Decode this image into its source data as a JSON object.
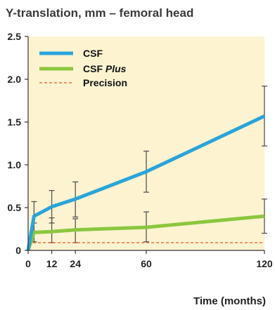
{
  "chart_data": {
    "type": "line",
    "title": "Y-translation, mm – femoral head",
    "xlabel": "Time (months)",
    "ylabel": "",
    "x_ticks": [
      0,
      12,
      24,
      60,
      120
    ],
    "y_ticks": [
      "0",
      "0.5",
      "1.0",
      "1.5",
      "2.0",
      "2.5"
    ],
    "xlim": [
      0,
      120
    ],
    "ylim": [
      0,
      2.5
    ],
    "grid": false,
    "legend_position": "top-left",
    "series": [
      {
        "name": "CSF",
        "color": "#2aa4da",
        "x": [
          0,
          3,
          12,
          24,
          60,
          120
        ],
        "y": [
          0,
          0.4,
          0.51,
          0.6,
          0.92,
          1.57
        ],
        "error_x": [
          3,
          12,
          24,
          60,
          120
        ],
        "error_low": [
          0.22,
          0.32,
          0.39,
          0.68,
          1.22
        ],
        "error_high": [
          0.57,
          0.7,
          0.8,
          1.16,
          1.92
        ]
      },
      {
        "name_prefix": "CSF ",
        "name_suffix": "Plus",
        "color": "#8cc63f",
        "x": [
          0,
          3,
          12,
          24,
          60,
          120
        ],
        "y": [
          0,
          0.21,
          0.22,
          0.24,
          0.27,
          0.4
        ],
        "error_x": [
          3,
          12,
          24,
          60,
          120
        ],
        "error_low": [
          0.1,
          0.09,
          0.09,
          0.1,
          0.2
        ],
        "error_high": [
          0.32,
          0.38,
          0.37,
          0.45,
          0.6
        ]
      },
      {
        "name": "Precision",
        "color": "#e25a2c",
        "style": "dashed",
        "x": [
          0,
          120
        ],
        "y": [
          0.09,
          0.09
        ]
      }
    ]
  },
  "colors": {
    "plot_background": "#fdf3d0",
    "axis": "#333333",
    "error_bar": "#555555"
  }
}
